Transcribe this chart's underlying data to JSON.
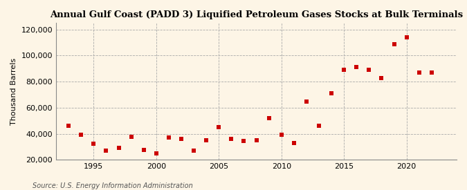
{
  "title": "Annual Gulf Coast (PADD 3) Liquified Petroleum Gases Stocks at Bulk Terminals",
  "ylabel": "Thousand Barrels",
  "source": "Source: U.S. Energy Information Administration",
  "background_color": "#fdf5e6",
  "marker_color": "#cc0000",
  "years": [
    1993,
    1994,
    1995,
    1996,
    1997,
    1998,
    1999,
    2000,
    2001,
    2002,
    2003,
    2004,
    2005,
    2006,
    2007,
    2008,
    2009,
    2010,
    2011,
    2012,
    2013,
    2014,
    2015,
    2016,
    2017,
    2018,
    2019,
    2020,
    2021,
    2022
  ],
  "values": [
    46000,
    39500,
    32500,
    27000,
    29000,
    37500,
    27500,
    25000,
    37000,
    36000,
    27000,
    35000,
    45000,
    36000,
    34500,
    35000,
    52000,
    39500,
    33000,
    65000,
    46000,
    71000,
    89000,
    91000,
    89000,
    83000,
    109000,
    114000,
    87000,
    87000
  ],
  "ylim": [
    20000,
    125000
  ],
  "yticks": [
    20000,
    40000,
    60000,
    80000,
    100000,
    120000
  ],
  "ytick_labels": [
    "20,000",
    "40,000",
    "60,000",
    "80,000",
    "100,000",
    "120,000"
  ],
  "xlim": [
    1992,
    2024
  ],
  "xticks": [
    1995,
    2000,
    2005,
    2010,
    2015,
    2020
  ]
}
